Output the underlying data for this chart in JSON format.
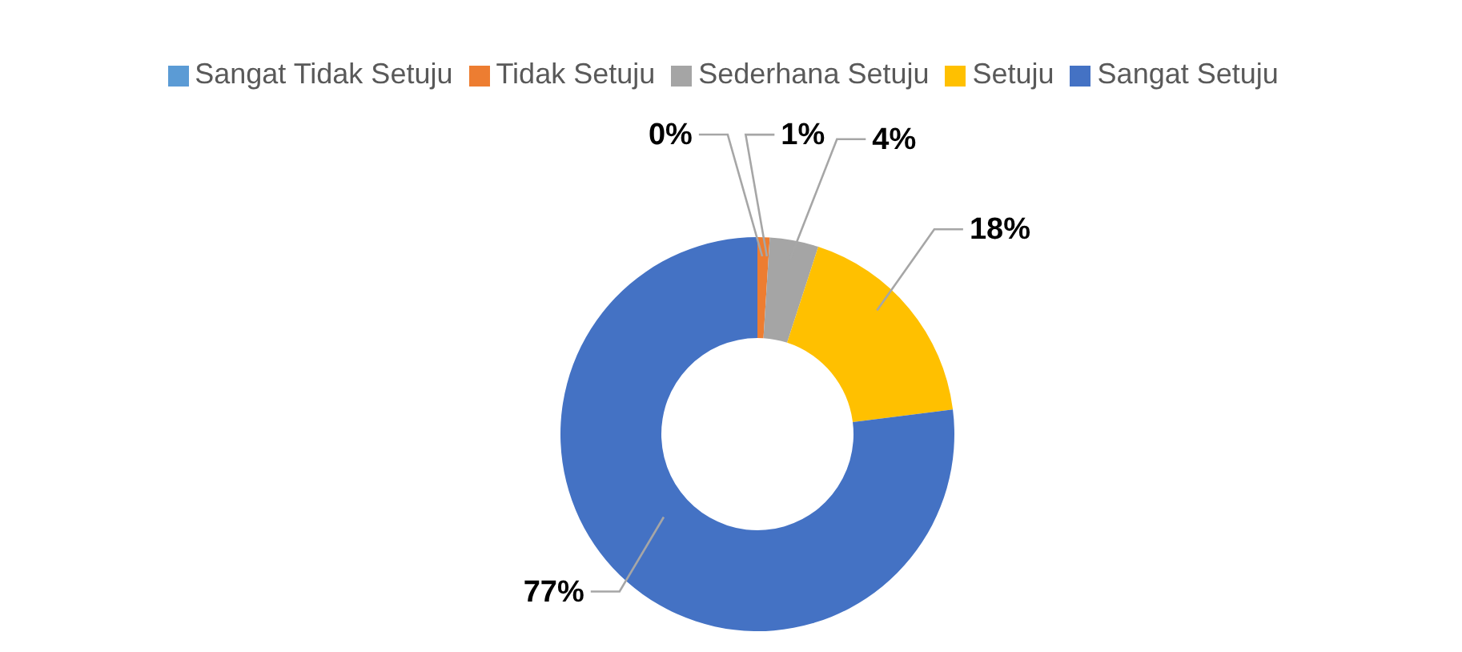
{
  "chart_data": {
    "type": "donut",
    "categories": [
      "Sangat Tidak Setuju",
      "Tidak Setuju",
      "Sederhana Setuju",
      "Setuju",
      "Sangat Setuju"
    ],
    "values": [
      0,
      1,
      4,
      18,
      77
    ],
    "colors": [
      "#5b9bd5",
      "#ed7d31",
      "#a5a5a5",
      "#ffc000",
      "#4472c4"
    ],
    "value_labels": [
      "0%",
      "1%",
      "4%",
      "18%",
      "77%"
    ],
    "legend": "top"
  }
}
